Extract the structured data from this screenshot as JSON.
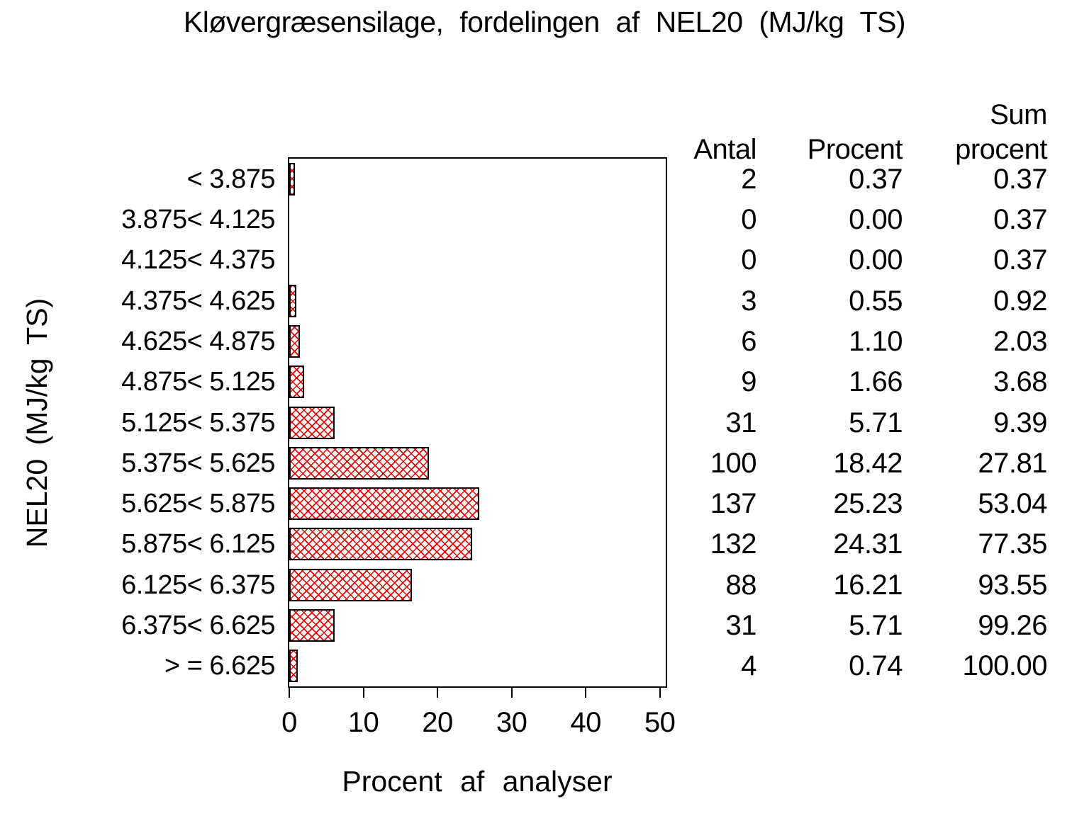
{
  "title": "Kløvergræsensilage, fordelingen af NEL20 (MJ/kg TS)",
  "colors": {
    "background": "#ffffff",
    "text": "#000000",
    "bar_fill": "#ffffff",
    "bar_hatch": "#ee0000",
    "bar_border": "#000000"
  },
  "chart_data": {
    "type": "bar",
    "orientation": "horizontal",
    "title": "Kløvergræsensilage, fordelingen af NEL20 (MJ/kg TS)",
    "xlabel": "Procent af analyser",
    "ylabel": "NEL20 (MJ/kg TS)",
    "xlim": [
      0,
      50.8
    ],
    "xticks": [
      0,
      10,
      20,
      30,
      40,
      50
    ],
    "grid": false,
    "legend": "none",
    "bar_hatch_style": "red diagonal crosshatch on white, black border",
    "categories": [
      "< 3.875",
      "3.875< 4.125",
      "4.125< 4.375",
      "4.375< 4.625",
      "4.625< 4.875",
      "4.875< 5.125",
      "5.125< 5.375",
      "5.375< 5.625",
      "5.625< 5.875",
      "5.875< 6.125",
      "6.125< 6.375",
      "6.375< 6.625",
      "> = 6.625"
    ],
    "series": [
      {
        "name": "Procent af analyser",
        "values": [
          0.37,
          0.0,
          0.0,
          0.55,
          1.1,
          1.66,
          5.71,
          18.42,
          25.23,
          24.31,
          16.21,
          5.71,
          0.74
        ]
      }
    ],
    "table": {
      "header": {
        "antal": "Antal",
        "procent": "Procent",
        "sum_line1": "Sum",
        "sum_line2": "procent"
      },
      "rows": [
        {
          "antal": "2",
          "procent": "0.37",
          "sum": "0.37"
        },
        {
          "antal": "0",
          "procent": "0.00",
          "sum": "0.37"
        },
        {
          "antal": "0",
          "procent": "0.00",
          "sum": "0.37"
        },
        {
          "antal": "3",
          "procent": "0.55",
          "sum": "0.92"
        },
        {
          "antal": "6",
          "procent": "1.10",
          "sum": "2.03"
        },
        {
          "antal": "9",
          "procent": "1.66",
          "sum": "3.68"
        },
        {
          "antal": "31",
          "procent": "5.71",
          "sum": "9.39"
        },
        {
          "antal": "100",
          "procent": "18.42",
          "sum": "27.81"
        },
        {
          "antal": "137",
          "procent": "25.23",
          "sum": "53.04"
        },
        {
          "antal": "132",
          "procent": "24.31",
          "sum": "77.35"
        },
        {
          "antal": "88",
          "procent": "16.21",
          "sum": "93.55"
        },
        {
          "antal": "31",
          "procent": "5.71",
          "sum": "99.26"
        },
        {
          "antal": "4",
          "procent": "0.74",
          "sum": "100.00"
        }
      ]
    }
  }
}
